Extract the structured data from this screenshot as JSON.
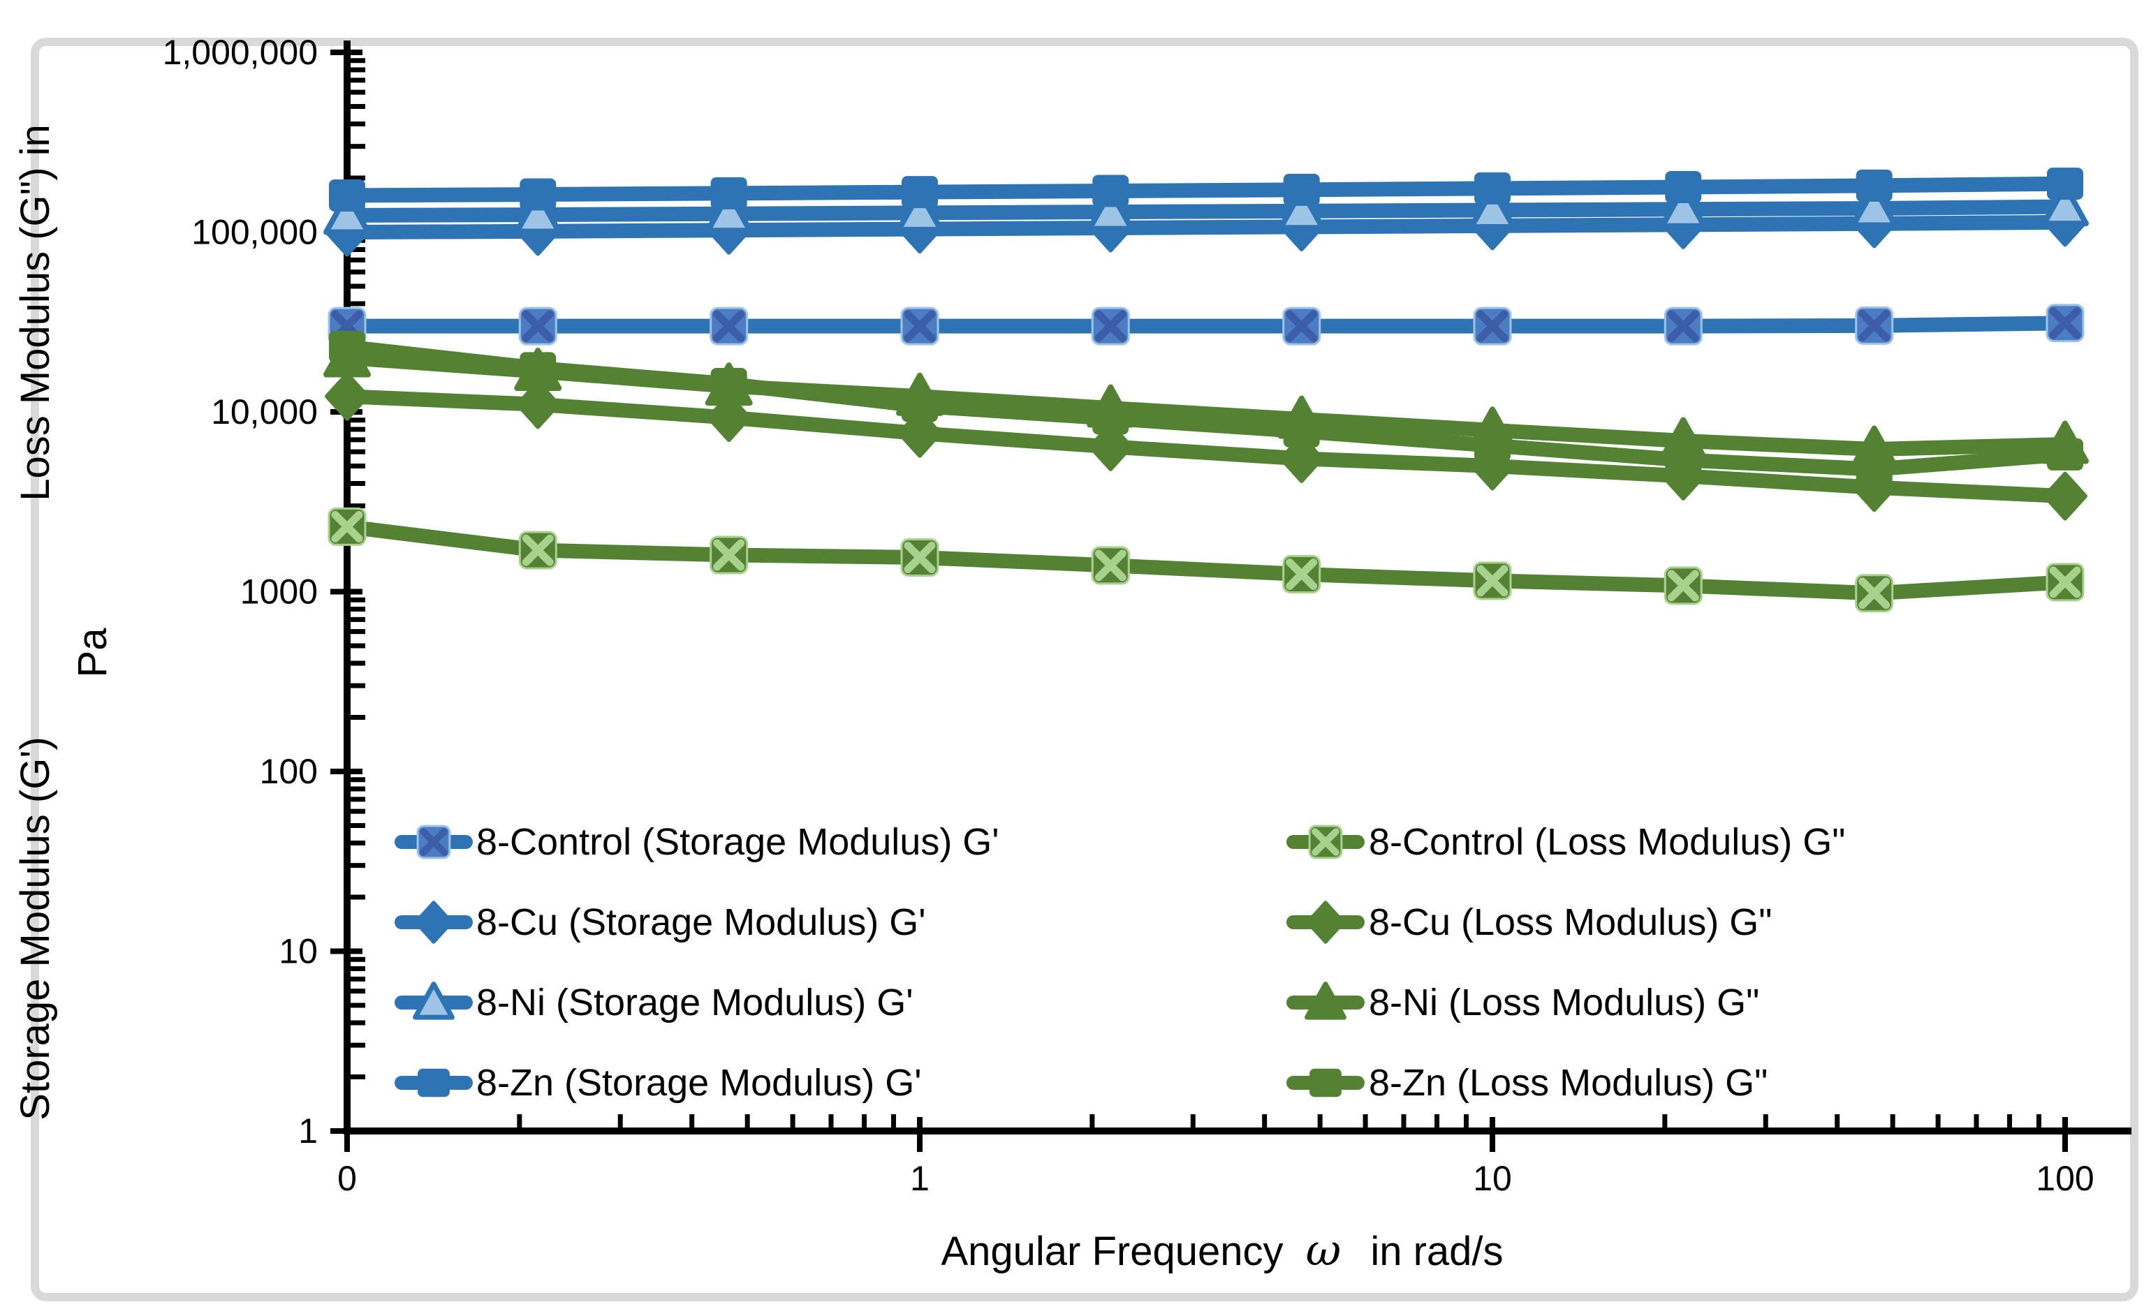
{
  "chart_data": {
    "type": "line",
    "xscale": "log",
    "yscale": "log",
    "xlim": [
      0.1,
      100
    ],
    "ylim": [
      1,
      1000000
    ],
    "x": [
      0.1,
      0.2154,
      0.4642,
      1,
      2.154,
      4.642,
      10,
      21.54,
      46.42,
      100
    ],
    "x_ticks": [
      0.1,
      1,
      10,
      100
    ],
    "x_tick_labels": [
      "0",
      "1",
      "10",
      "100"
    ],
    "y_ticks": [
      1,
      10,
      100,
      1000,
      10000,
      100000,
      1000000
    ],
    "y_tick_labels": [
      "1",
      "10",
      "100",
      "1000",
      "10,000",
      "100,000",
      "1,000,000"
    ],
    "xlabel_parts": {
      "prefix": "Angular Frequency",
      "omega": "ω",
      "suffix": "in rad/s"
    },
    "xlabel_full": "Angular Frequency ω  in rad/s",
    "ylabel_parts": {
      "top": "Loss Modulus (G\") in",
      "line2": "Pa",
      "bottom": "Storage Modulus (G')"
    },
    "ylabel_full": "Storage Modulus (G') Loss Modulus (G\") in Pa",
    "grid": false,
    "legend_position": "inside-bottom-two-columns",
    "colors": {
      "blue": "#2E74B4",
      "light_blue": "#9DC3E6",
      "blue_x_fill": "#4C7CC4",
      "blue_x_stroke": "#3B5EA6",
      "green": "#548235",
      "light_green": "#A9D18E"
    },
    "series": [
      {
        "name": "8-Control (Storage Modulus) G'",
        "group": "storage",
        "marker": "xsquare",
        "color": "#2E74B4",
        "values": [
          30000,
          30000,
          30000,
          30000,
          30000,
          30000,
          30000,
          30000,
          30200,
          31200
        ]
      },
      {
        "name": "8-Cu (Storage Modulus) G'",
        "group": "storage",
        "marker": "diamond",
        "color": "#2E74B4",
        "values": [
          100000,
          101000,
          102500,
          104000,
          105500,
          107000,
          108500,
          110000,
          111500,
          113500
        ]
      },
      {
        "name": "8-Ni (Storage Modulus) G'",
        "group": "storage",
        "marker": "triangle",
        "color": "#2E74B4",
        "values": [
          124000,
          125000,
          126500,
          128000,
          129500,
          131000,
          132500,
          134000,
          135500,
          138500
        ]
      },
      {
        "name": "8-Zn (Storage Modulus) G'",
        "group": "storage",
        "marker": "square",
        "color": "#2E74B4",
        "values": [
          160000,
          162000,
          164500,
          167000,
          169500,
          172000,
          175000,
          178000,
          181500,
          186000
        ]
      },
      {
        "name": "8-Control (Loss Modulus) G\"",
        "group": "loss",
        "marker": "xsquare",
        "color": "#548235",
        "values": [
          2300,
          1700,
          1600,
          1550,
          1400,
          1250,
          1150,
          1080,
          980,
          1130
        ]
      },
      {
        "name": "8-Cu (Loss Modulus) G\"",
        "group": "loss",
        "marker": "diamond",
        "color": "#548235",
        "values": [
          12200,
          11000,
          9300,
          7600,
          6400,
          5500,
          5000,
          4400,
          3800,
          3400
        ]
      },
      {
        "name": "8-Ni (Loss Modulus) G\"",
        "group": "loss",
        "marker": "triangle",
        "color": "#548235",
        "values": [
          20000,
          16800,
          13900,
          12200,
          10500,
          9100,
          7900,
          6900,
          6200,
          6600
        ]
      },
      {
        "name": "8-Zn (Loss Modulus) G\"",
        "group": "loss",
        "marker": "square",
        "color": "#548235",
        "values": [
          23000,
          17500,
          14300,
          10800,
          9200,
          7800,
          6500,
          5400,
          4800,
          5800
        ]
      }
    ],
    "legend_columns": [
      {
        "series_indexes": [
          0,
          1,
          2,
          3
        ]
      },
      {
        "series_indexes": [
          4,
          5,
          6,
          7
        ]
      }
    ]
  }
}
